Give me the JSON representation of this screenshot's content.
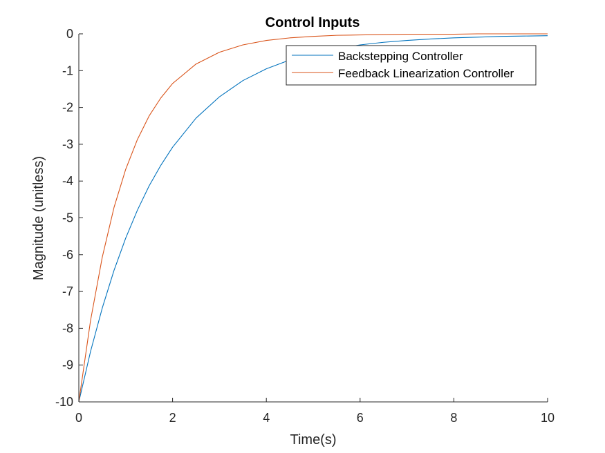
{
  "chart_data": {
    "type": "line",
    "title": "Control Inputs",
    "xlabel": "Time(s)",
    "ylabel": "Magnitude (unitless)",
    "xlim": [
      0,
      10
    ],
    "ylim": [
      -10,
      0
    ],
    "xticks": [
      0,
      2,
      4,
      6,
      8,
      10
    ],
    "yticks": [
      0,
      -1,
      -2,
      -3,
      -4,
      -5,
      -6,
      -7,
      -8,
      -9,
      -10
    ],
    "grid": false,
    "legend_position": "top-right",
    "series": [
      {
        "name": "Backstepping Controller",
        "color": "#0072BD",
        "x": [
          0,
          0.25,
          0.5,
          0.75,
          1,
          1.25,
          1.5,
          1.75,
          2,
          2.5,
          3,
          3.5,
          4,
          4.5,
          5,
          5.5,
          6,
          6.5,
          7,
          7.5,
          8,
          8.5,
          9,
          9.5,
          10
        ],
        "y": [
          -10,
          -8.63,
          -7.45,
          -6.43,
          -5.55,
          -4.79,
          -4.13,
          -3.57,
          -3.08,
          -2.29,
          -1.71,
          -1.27,
          -0.95,
          -0.71,
          -0.53,
          -0.4,
          -0.3,
          -0.23,
          -0.18,
          -0.14,
          -0.11,
          -0.09,
          -0.07,
          -0.06,
          -0.05
        ]
      },
      {
        "name": "Feedback Linearization Controller",
        "color": "#D95319",
        "x": [
          0,
          0.25,
          0.5,
          0.75,
          1,
          1.25,
          1.5,
          1.75,
          2,
          2.5,
          3,
          3.5,
          4,
          4.5,
          5,
          5.5,
          6,
          6.5,
          7,
          7.5,
          8,
          8.5,
          9,
          9.5,
          10
        ],
        "y": [
          -10,
          -7.79,
          -6.07,
          -4.72,
          -3.68,
          -2.87,
          -2.23,
          -1.74,
          -1.35,
          -0.82,
          -0.5,
          -0.3,
          -0.18,
          -0.11,
          -0.07,
          -0.04,
          -0.03,
          -0.02,
          -0.01,
          -0.01,
          -0.01,
          0,
          0,
          0,
          0
        ]
      }
    ]
  }
}
